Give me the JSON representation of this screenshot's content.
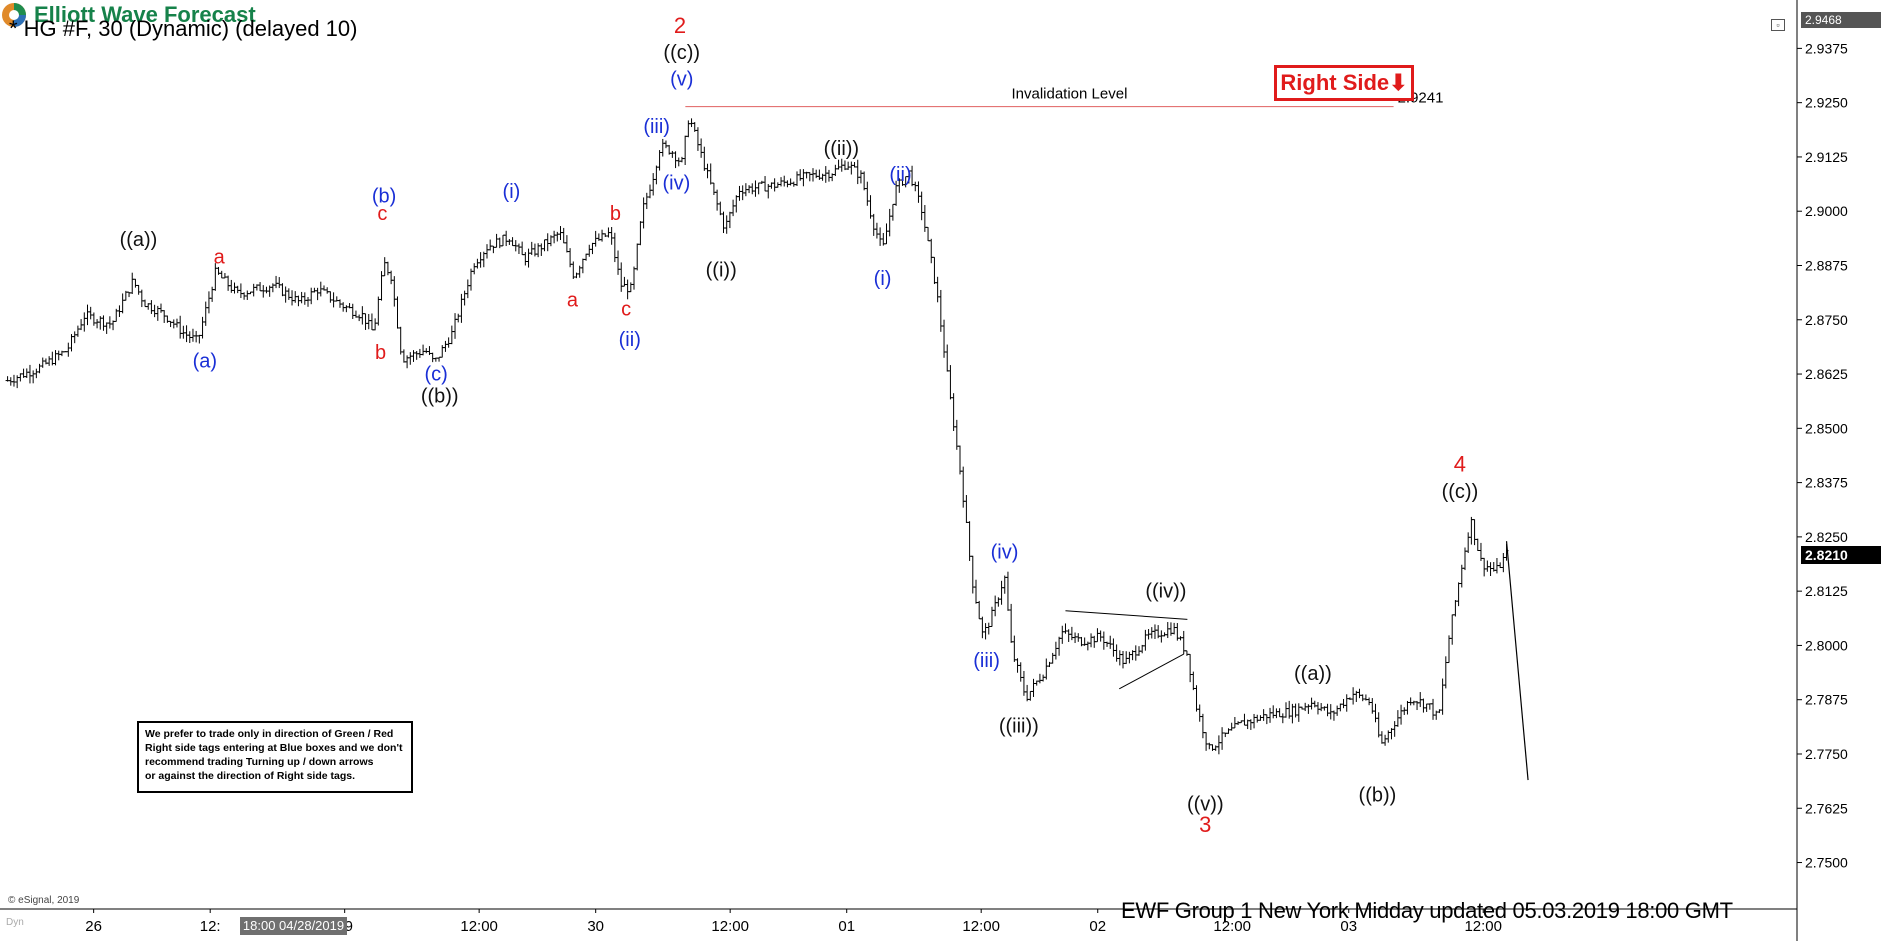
{
  "header": {
    "symbol_title": "* HG #F, 30 (Dynamic) (delayed 10)",
    "logo_text": "Elliott Wave Forecast",
    "right_side_label": "Right Side⬇"
  },
  "footer": {
    "updated_text": "EWF Group 1 New York Midday  updated 05.03.2019 18:00 GMT",
    "copyright": "© eSignal, 2019",
    "dyn_label": "Dyn",
    "cursor_date": "18:00 04/28/2019"
  },
  "note": {
    "lines": [
      "We prefer to trade only in direction of Green / Red",
      "Right side tags entering at Blue boxes and we don't",
      "recommend trading Turning up / down arrows",
      "or against the direction of Right side tags."
    ]
  },
  "colors": {
    "wave_red": "#e01b1b",
    "wave_blue": "#1a2fd6",
    "wave_black": "#111111",
    "logo_green": "#16824a",
    "invalidation_line": "#e06060"
  },
  "chart_data": {
    "type": "ohlc",
    "yaxis": {
      "ylim": [
        2.7393,
        2.9468
      ],
      "ticks": [
        "2.9375",
        "2.9250",
        "2.9125",
        "2.9000",
        "2.8875",
        "2.8750",
        "2.8625",
        "2.8500",
        "2.8375",
        "2.8250",
        "2.8125",
        "2.8000",
        "2.7875",
        "2.7750",
        "2.7625",
        "2.7500"
      ],
      "top_label": "2.9468",
      "last_price": "2.8210"
    },
    "xaxis": {
      "ticks": [
        {
          "label": "26",
          "x": 0.05
        },
        {
          "label": "12:",
          "x": 0.115
        },
        {
          "label": "29",
          "x": 0.19
        },
        {
          "label": "12:00",
          "x": 0.265
        },
        {
          "label": "30",
          "x": 0.33
        },
        {
          "label": "12:00",
          "x": 0.405
        },
        {
          "label": "01",
          "x": 0.47
        },
        {
          "label": "12:00",
          "x": 0.545
        },
        {
          "label": "02",
          "x": 0.61
        },
        {
          "label": "12:00",
          "x": 0.685
        },
        {
          "label": "03",
          "x": 0.75
        },
        {
          "label": "12:00",
          "x": 0.825
        }
      ]
    },
    "price_path": [
      [
        0.002,
        2.861
      ],
      [
        0.02,
        2.864
      ],
      [
        0.035,
        2.868
      ],
      [
        0.045,
        2.876
      ],
      [
        0.06,
        2.874
      ],
      [
        0.072,
        2.884
      ],
      [
        0.078,
        2.879
      ],
      [
        0.09,
        2.876
      ],
      [
        0.1,
        2.872
      ],
      [
        0.108,
        2.87
      ],
      [
        0.118,
        2.886
      ],
      [
        0.13,
        2.881
      ],
      [
        0.15,
        2.883
      ],
      [
        0.165,
        2.879
      ],
      [
        0.175,
        2.882
      ],
      [
        0.19,
        2.878
      ],
      [
        0.2,
        2.876
      ],
      [
        0.206,
        2.872
      ],
      [
        0.212,
        2.888
      ],
      [
        0.216,
        2.885
      ],
      [
        0.222,
        2.866
      ],
      [
        0.235,
        2.868
      ],
      [
        0.24,
        2.865
      ],
      [
        0.25,
        2.872
      ],
      [
        0.262,
        2.888
      ],
      [
        0.27,
        2.892
      ],
      [
        0.282,
        2.894
      ],
      [
        0.29,
        2.889
      ],
      [
        0.3,
        2.892
      ],
      [
        0.31,
        2.895
      ],
      [
        0.318,
        2.885
      ],
      [
        0.326,
        2.892
      ],
      [
        0.338,
        2.895
      ],
      [
        0.344,
        2.883
      ],
      [
        0.35,
        2.882
      ],
      [
        0.356,
        2.9
      ],
      [
        0.362,
        2.908
      ],
      [
        0.366,
        2.915
      ],
      [
        0.372,
        2.914
      ],
      [
        0.378,
        2.911
      ],
      [
        0.382,
        2.922
      ],
      [
        0.388,
        2.914
      ],
      [
        0.395,
        2.905
      ],
      [
        0.402,
        2.896
      ],
      [
        0.41,
        2.905
      ],
      [
        0.43,
        2.906
      ],
      [
        0.448,
        2.908
      ],
      [
        0.462,
        2.909
      ],
      [
        0.47,
        2.911
      ],
      [
        0.478,
        2.908
      ],
      [
        0.485,
        2.897
      ],
      [
        0.49,
        2.891
      ],
      [
        0.497,
        2.905
      ],
      [
        0.505,
        2.909
      ],
      [
        0.512,
        2.9
      ],
      [
        0.52,
        2.882
      ],
      [
        0.528,
        2.856
      ],
      [
        0.534,
        2.838
      ],
      [
        0.54,
        2.815
      ],
      [
        0.546,
        2.802
      ],
      [
        0.552,
        2.808
      ],
      [
        0.558,
        2.816
      ],
      [
        0.562,
        2.799
      ],
      [
        0.57,
        2.788
      ],
      [
        0.58,
        2.794
      ],
      [
        0.59,
        2.803
      ],
      [
        0.6,
        2.801
      ],
      [
        0.612,
        2.802
      ],
      [
        0.625,
        2.796
      ],
      [
        0.638,
        2.802
      ],
      [
        0.652,
        2.804
      ],
      [
        0.66,
        2.798
      ],
      [
        0.665,
        2.786
      ],
      [
        0.672,
        2.776
      ],
      [
        0.68,
        2.779
      ],
      [
        0.69,
        2.782
      ],
      [
        0.705,
        2.784
      ],
      [
        0.72,
        2.785
      ],
      [
        0.73,
        2.787
      ],
      [
        0.74,
        2.784
      ],
      [
        0.752,
        2.789
      ],
      [
        0.762,
        2.787
      ],
      [
        0.768,
        2.777
      ],
      [
        0.775,
        2.782
      ],
      [
        0.785,
        2.788
      ],
      [
        0.795,
        2.786
      ],
      [
        0.8,
        2.783
      ],
      [
        0.806,
        2.802
      ],
      [
        0.812,
        2.816
      ],
      [
        0.818,
        2.829
      ],
      [
        0.824,
        2.819
      ],
      [
        0.832,
        2.817
      ],
      [
        0.838,
        2.821
      ]
    ],
    "invalidation": {
      "label": "Invalidation Level",
      "value_label": "2.9241",
      "price": 2.9241,
      "x_start": 0.38,
      "x_end": 0.775
    },
    "projection": [
      [
        0.838,
        2.824
      ],
      [
        0.85,
        2.769
      ]
    ],
    "triangle": {
      "upper": [
        [
          0.592,
          2.808
        ],
        [
          0.66,
          2.806
        ]
      ],
      "lower": [
        [
          0.622,
          2.79
        ],
        [
          0.658,
          2.798
        ]
      ]
    },
    "wave_labels": [
      {
        "text": "((a))",
        "x": 0.075,
        "price": 2.892,
        "color": "black"
      },
      {
        "text": "a",
        "x": 0.12,
        "price": 2.888,
        "color": "red"
      },
      {
        "text": "(a)",
        "x": 0.112,
        "price": 2.864,
        "color": "blue"
      },
      {
        "text": "(b)",
        "x": 0.212,
        "price": 2.902,
        "color": "blue"
      },
      {
        "text": "c",
        "x": 0.211,
        "price": 2.898,
        "color": "red"
      },
      {
        "text": "b",
        "x": 0.21,
        "price": 2.866,
        "color": "red"
      },
      {
        "text": "(c)",
        "x": 0.241,
        "price": 2.861,
        "color": "blue"
      },
      {
        "text": "((b))",
        "x": 0.243,
        "price": 2.856,
        "color": "black"
      },
      {
        "text": "(i)",
        "x": 0.283,
        "price": 2.903,
        "color": "blue"
      },
      {
        "text": "a",
        "x": 0.317,
        "price": 2.878,
        "color": "red"
      },
      {
        "text": "b",
        "x": 0.341,
        "price": 2.898,
        "color": "red"
      },
      {
        "text": "c",
        "x": 0.347,
        "price": 2.876,
        "color": "red"
      },
      {
        "text": "(ii)",
        "x": 0.349,
        "price": 2.869,
        "color": "blue"
      },
      {
        "text": "2",
        "x": 0.377,
        "price": 2.941,
        "color": "red"
      },
      {
        "text": "((c))",
        "x": 0.378,
        "price": 2.935,
        "color": "black"
      },
      {
        "text": "(v)",
        "x": 0.378,
        "price": 2.929,
        "color": "blue"
      },
      {
        "text": "(iii)",
        "x": 0.364,
        "price": 2.918,
        "color": "blue"
      },
      {
        "text": "(iv)",
        "x": 0.375,
        "price": 2.905,
        "color": "blue"
      },
      {
        "text": "((i))",
        "x": 0.4,
        "price": 2.885,
        "color": "black"
      },
      {
        "text": "((ii))",
        "x": 0.467,
        "price": 2.913,
        "color": "black"
      },
      {
        "text": "(ii)",
        "x": 0.5,
        "price": 2.907,
        "color": "blue"
      },
      {
        "text": "(i)",
        "x": 0.49,
        "price": 2.883,
        "color": "blue"
      },
      {
        "text": "(iv)",
        "x": 0.558,
        "price": 2.82,
        "color": "blue"
      },
      {
        "text": "(iii)",
        "x": 0.548,
        "price": 2.795,
        "color": "blue"
      },
      {
        "text": "((iii))",
        "x": 0.566,
        "price": 2.78,
        "color": "black"
      },
      {
        "text": "((iv))",
        "x": 0.648,
        "price": 2.811,
        "color": "black"
      },
      {
        "text": "((v))",
        "x": 0.67,
        "price": 2.762,
        "color": "black"
      },
      {
        "text": "3",
        "x": 0.67,
        "price": 2.757,
        "color": "red"
      },
      {
        "text": "((a))",
        "x": 0.73,
        "price": 2.792,
        "color": "black"
      },
      {
        "text": "((b))",
        "x": 0.766,
        "price": 2.764,
        "color": "black"
      },
      {
        "text": "4",
        "x": 0.812,
        "price": 2.84,
        "color": "red"
      },
      {
        "text": "((c))",
        "x": 0.812,
        "price": 2.834,
        "color": "black"
      }
    ]
  }
}
